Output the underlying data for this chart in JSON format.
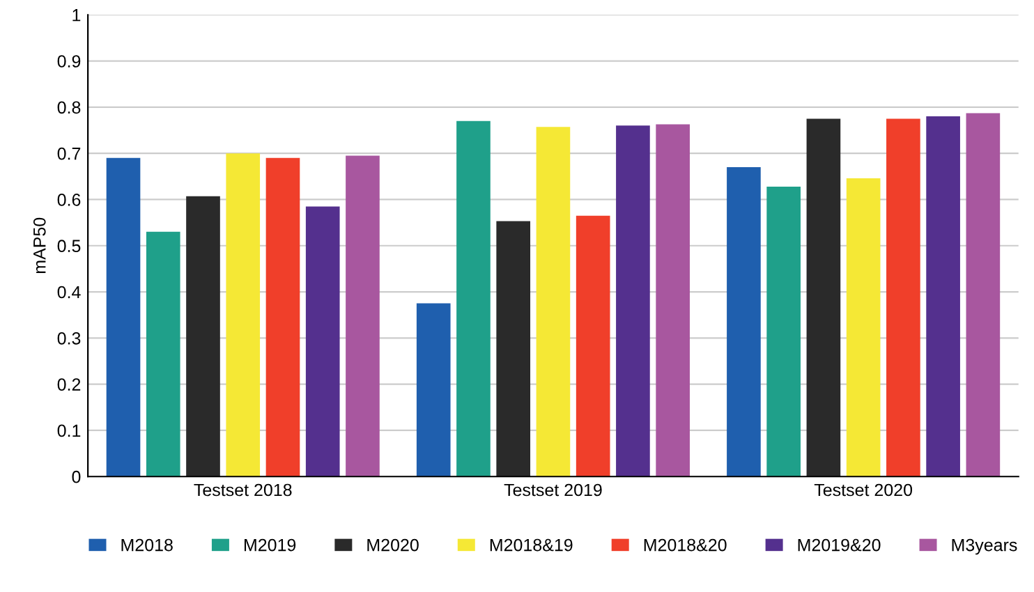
{
  "chart_data": {
    "type": "bar",
    "ylabel": "mAP50",
    "categories": [
      "Testset 2018",
      "Testset 2019",
      "Testset 2020"
    ],
    "series": [
      {
        "name": "M2018",
        "color": "#1f5fae",
        "values": [
          0.69,
          0.375,
          0.67
        ]
      },
      {
        "name": "M2019",
        "color": "#1fa08a",
        "values": [
          0.53,
          0.77,
          0.628
        ]
      },
      {
        "name": "M2020",
        "color": "#2a2a2a",
        "values": [
          0.607,
          0.553,
          0.775
        ]
      },
      {
        "name": "M2018&19",
        "color": "#f5e835",
        "values": [
          0.7,
          0.757,
          0.646
        ]
      },
      {
        "name": "M2018&20",
        "color": "#f03f2a",
        "values": [
          0.69,
          0.565,
          0.775
        ]
      },
      {
        "name": "M2019&20",
        "color": "#54308e",
        "values": [
          0.585,
          0.76,
          0.78
        ]
      },
      {
        "name": "M3years",
        "color": "#a8579f",
        "values": [
          0.695,
          0.763,
          0.787
        ]
      }
    ],
    "ylim": [
      0,
      1
    ],
    "yticks": [
      0,
      0.1,
      0.2,
      0.3,
      0.4,
      0.5,
      0.6,
      0.7,
      0.8,
      0.9,
      1
    ],
    "grid": "y",
    "legend": "bottom"
  }
}
